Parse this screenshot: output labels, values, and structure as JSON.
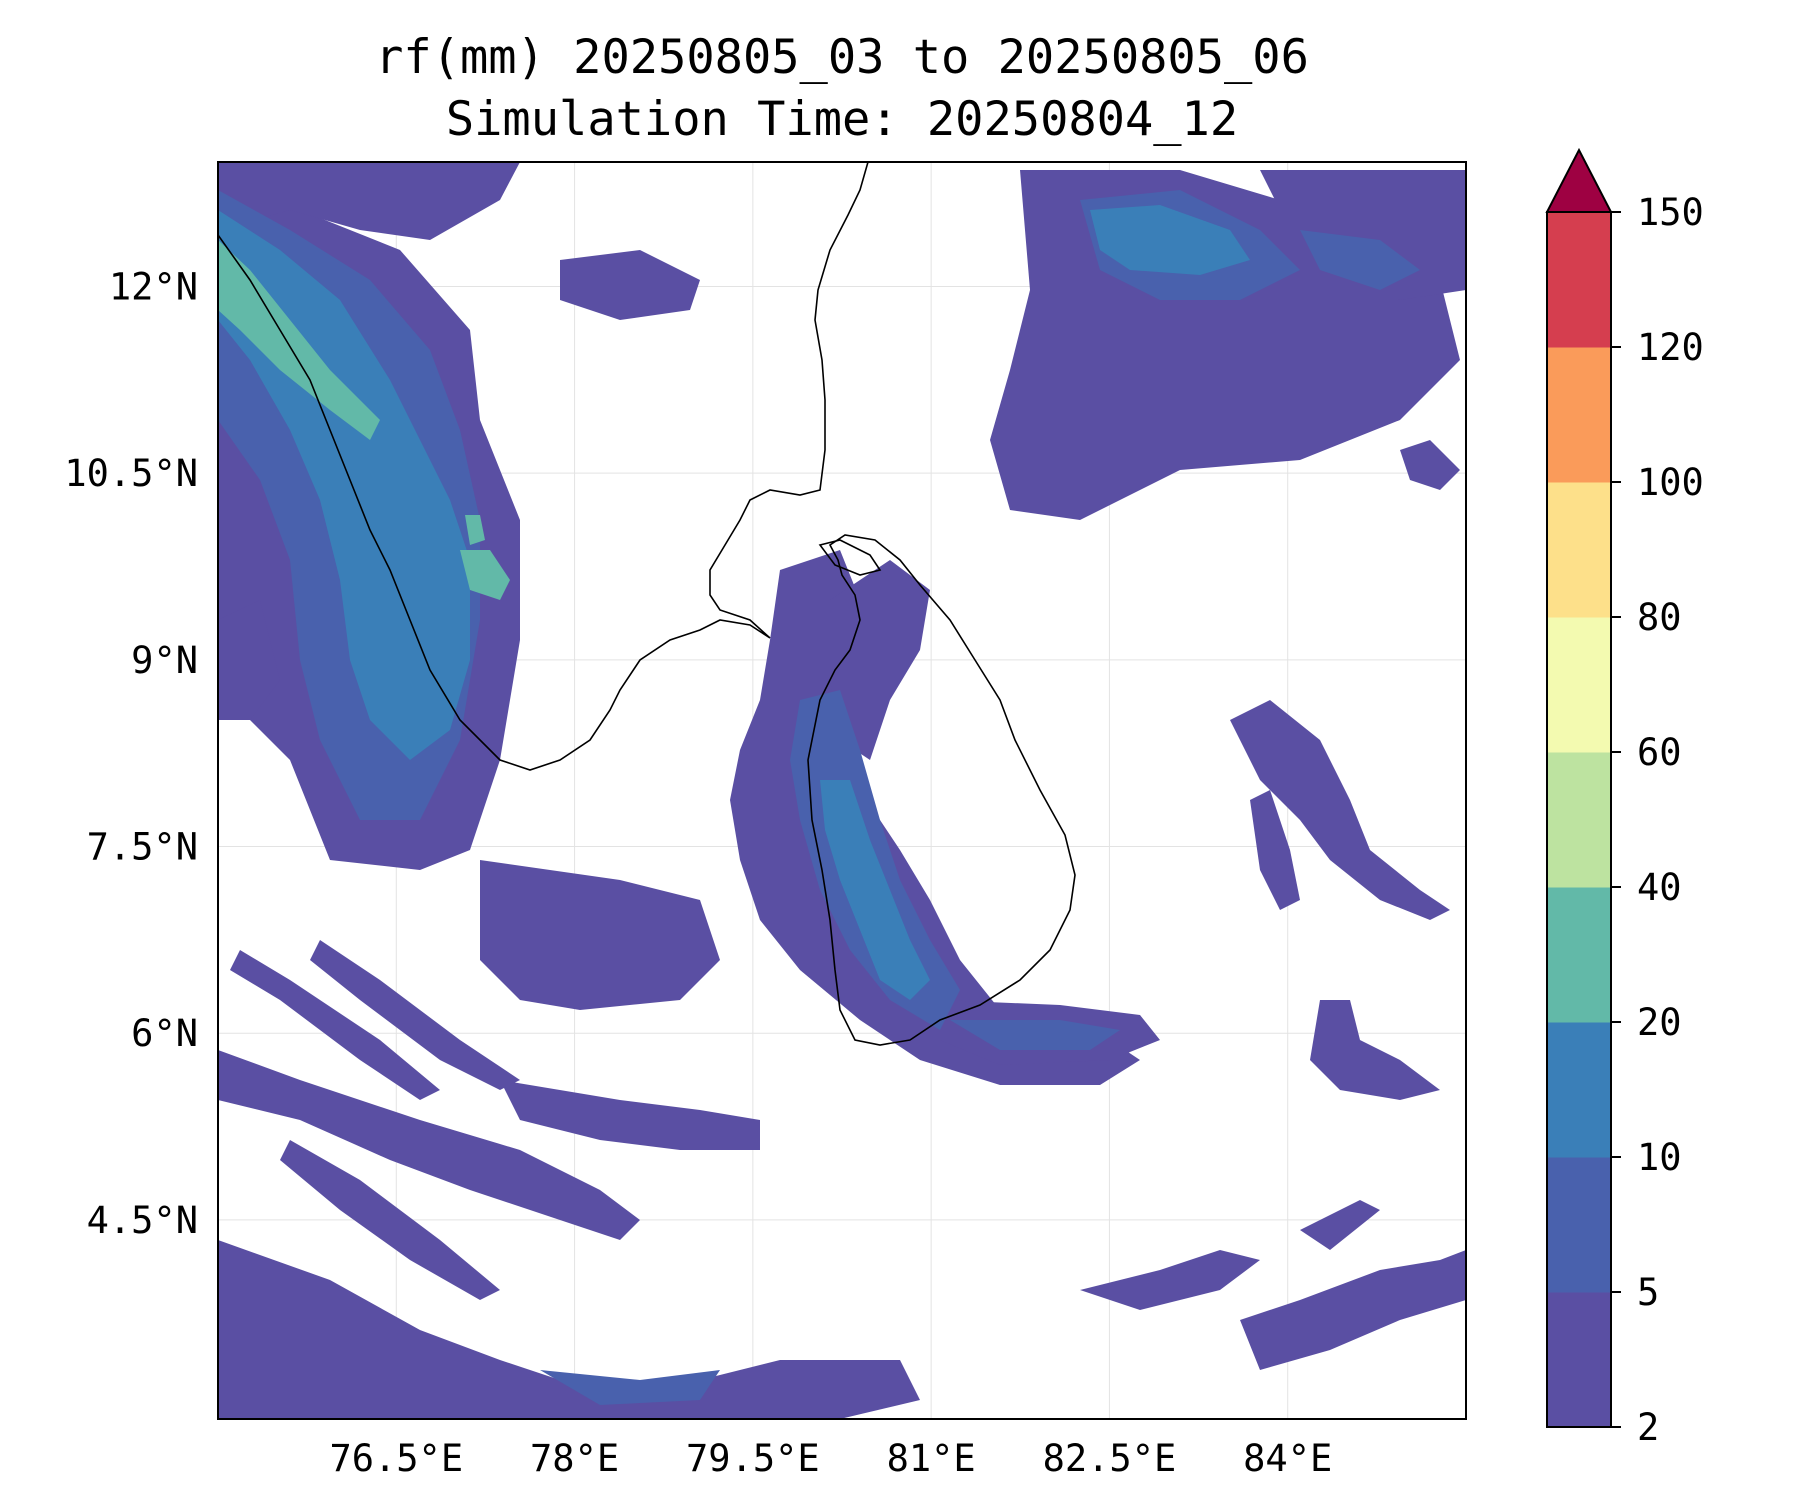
{
  "title": "rf(mm) 20250805_03 to 20250805_06",
  "subtitle": "Simulation Time: 20250804_12",
  "map": {
    "lon_range": [
      75.0,
      85.5
    ],
    "lat_range": [
      2.9,
      13.0
    ],
    "xticks": [
      {
        "value": 76.5,
        "label": "76.5°E"
      },
      {
        "value": 78.0,
        "label": "78°E"
      },
      {
        "value": 79.5,
        "label": "79.5°E"
      },
      {
        "value": 81.0,
        "label": "81°E"
      },
      {
        "value": 82.5,
        "label": "82.5°E"
      },
      {
        "value": 84.0,
        "label": "84°E"
      }
    ],
    "yticks": [
      {
        "value": 12.0,
        "label": "12°N"
      },
      {
        "value": 10.5,
        "label": "10.5°N"
      },
      {
        "value": 9.0,
        "label": "9°N"
      },
      {
        "value": 7.5,
        "label": "7.5°N"
      },
      {
        "value": 6.0,
        "label": "6°N"
      },
      {
        "value": 4.5,
        "label": "4.5°N"
      }
    ],
    "grid": true
  },
  "colorbar": {
    "levels": [
      2,
      5,
      10,
      20,
      40,
      60,
      80,
      100,
      120,
      150
    ],
    "labels": [
      "2",
      "5",
      "10",
      "20",
      "40",
      "60",
      "80",
      "100",
      "120",
      "150"
    ],
    "colors": [
      "#5a4fa3",
      "#4961ad",
      "#3a7fb8",
      "#62b9a8",
      "#bde3a0",
      "#f3fab0",
      "#fde08a",
      "#fa9b5a",
      "#d53e4f"
    ],
    "extend_color": "#9e0142",
    "extend": "max"
  },
  "colors": {
    "c1": "#5a4fa3",
    "c2": "#4961ad",
    "c3": "#3a7fb8",
    "c4": "#62b9a8",
    "coast": "#000000"
  }
}
